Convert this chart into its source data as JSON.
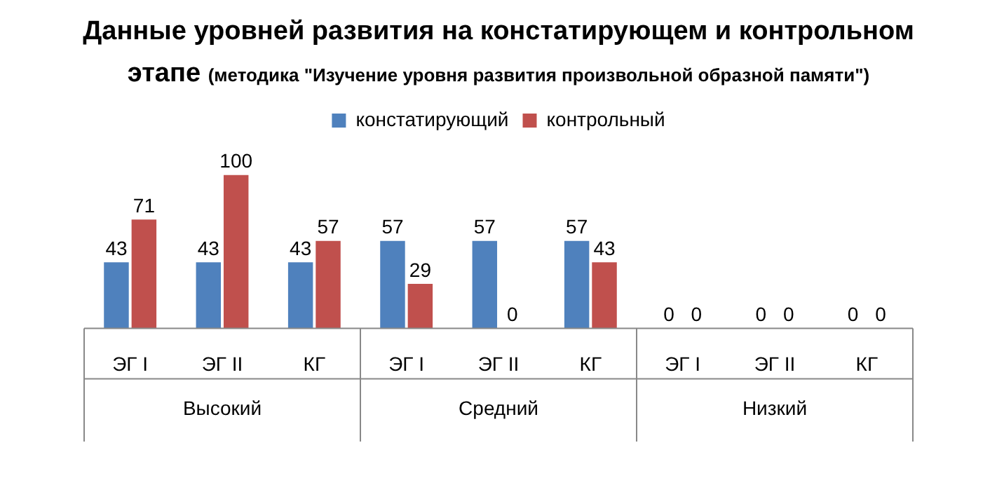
{
  "chart_data": {
    "type": "bar",
    "title": "Данные уровней развития на констатирующем и контрольном этапе",
    "subtitle": "(методика \"Изучение уровня развития произвольной образной памяти\")",
    "categories": [
      "ЭГ I",
      "ЭГ II",
      "КГ",
      "ЭГ I",
      "ЭГ II",
      "КГ",
      "ЭГ I",
      "ЭГ II",
      "КГ"
    ],
    "series": [
      {
        "name": "констатирующий",
        "color": "#4f81bd",
        "values": [
          43,
          43,
          43,
          57,
          57,
          57,
          0,
          0,
          0
        ]
      },
      {
        "name": "контрольный",
        "color": "#c0504d",
        "values": [
          71,
          100,
          57,
          29,
          0,
          43,
          0,
          0,
          0
        ]
      }
    ],
    "annotations": [
      "Высокий",
      "Средний",
      "Низкий"
    ],
    "data_labels": true,
    "grid": false,
    "legend": "top"
  }
}
